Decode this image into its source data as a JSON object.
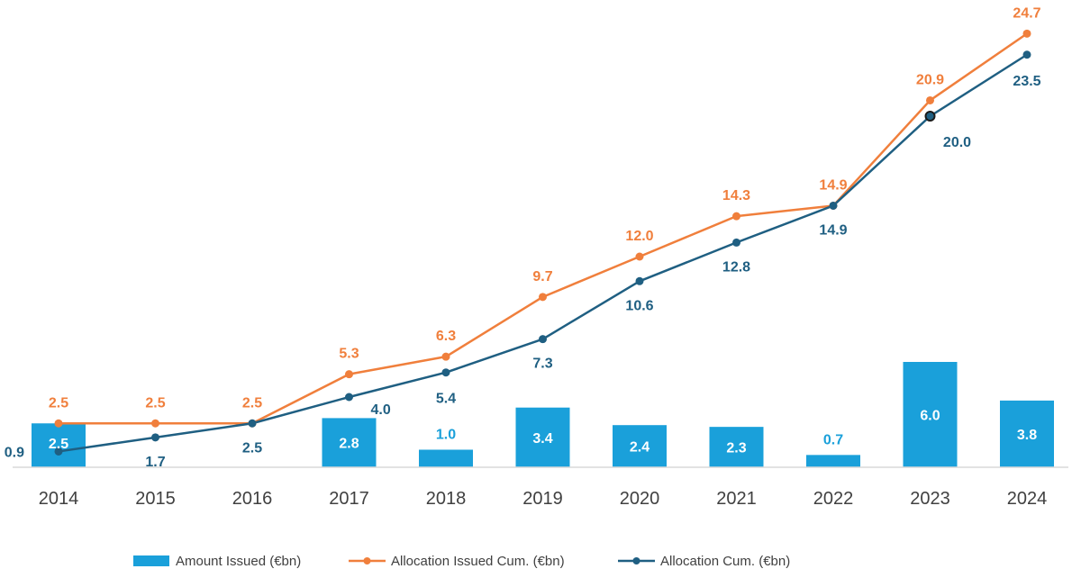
{
  "chart_data": {
    "type": "bar",
    "categories": [
      "2014",
      "2015",
      "2016",
      "2017",
      "2018",
      "2019",
      "2020",
      "2021",
      "2022",
      "2023",
      "2024"
    ],
    "series": [
      {
        "name": "Amount Issued (€bn)",
        "kind": "bar",
        "color": "#1aa0da",
        "values": [
          2.5,
          null,
          null,
          2.8,
          1.0,
          3.4,
          2.4,
          2.3,
          0.7,
          6.0,
          3.8
        ],
        "labels": [
          "2.5",
          "",
          "",
          "2.8",
          "1.0",
          "3.4",
          "2.4",
          "2.3",
          "0.7",
          "6.0",
          "3.8"
        ]
      },
      {
        "name": "Allocation Issued Cum. (€bn)",
        "kind": "line",
        "color": "#f07f3c",
        "values": [
          2.5,
          2.5,
          2.5,
          5.3,
          6.3,
          9.7,
          12.0,
          14.3,
          14.9,
          20.9,
          24.7
        ],
        "labels": [
          "2.5",
          "2.5",
          "2.5",
          "5.3",
          "6.3",
          "9.7",
          "12.0",
          "14.3",
          "14.9",
          "20.9",
          "24.7"
        ]
      },
      {
        "name": "Allocation Cum. (€bn)",
        "kind": "line",
        "color": "#1f5f82",
        "values": [
          0.9,
          1.7,
          2.5,
          4.0,
          5.4,
          7.3,
          10.6,
          12.8,
          14.9,
          20.0,
          23.5
        ],
        "labels": [
          "0.9",
          "1.7",
          "2.5",
          "4.0",
          "5.4",
          "7.3",
          "10.6",
          "12.8",
          "14.9",
          "20.0",
          "23.5"
        ]
      }
    ],
    "title": "",
    "xlabel": "",
    "ylabel": "",
    "ylim": [
      0,
      26
    ],
    "grid": false,
    "legend_position": "bottom"
  }
}
